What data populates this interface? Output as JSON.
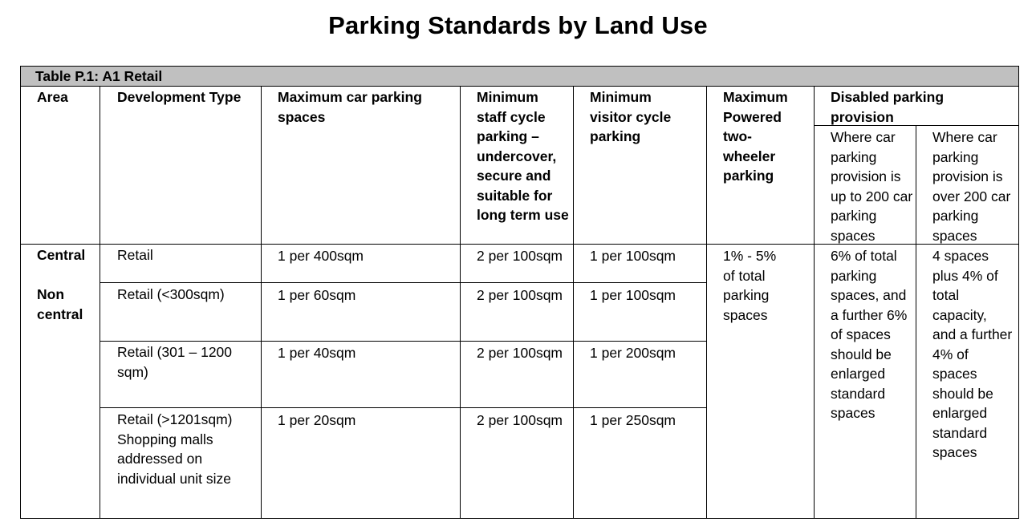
{
  "title": "Parking Standards by Land Use",
  "table_caption": "Table P.1: A1 Retail",
  "headers": {
    "area": "Area",
    "development_type": "Development Type",
    "max_car": "Maximum car parking spaces",
    "min_staff_cycle": "Minimum staff cycle parking – undercover, secure and suitable for long term use",
    "min_visitor_cycle": "Minimum visitor cycle parking",
    "max_powered": "Maximum Powered two-wheeler parking",
    "disabled": "Disabled parking provision",
    "disabled_sub1": "Where car parking provision is up to 200 car parking spaces",
    "disabled_sub2": "Where car parking provision is over 200 car parking spaces"
  },
  "rows": [
    {
      "area": "Central",
      "type": "Retail",
      "max_car": "1 per 400sqm",
      "staff_cycle": "2 per 100sqm",
      "visitor_cycle": "1 per 100sqm"
    },
    {
      "area": "Non central",
      "type": "Retail (<300sqm)",
      "max_car": "1 per 60sqm",
      "staff_cycle": "2 per 100sqm",
      "visitor_cycle": "1 per 100sqm"
    },
    {
      "area": "",
      "type": "Retail (301 – 1200 sqm)",
      "max_car": "1 per 40sqm",
      "staff_cycle": "2 per 100sqm",
      "visitor_cycle": "1 per 200sqm"
    },
    {
      "area": "",
      "type": "Retail (>1201sqm) Shopping malls addressed on individual unit size",
      "max_car": "1 per 20sqm",
      "staff_cycle": "2 per 100sqm",
      "visitor_cycle": "1 per 250sqm"
    }
  ],
  "merged": {
    "powered": "1% - 5% of total parking spaces",
    "disabled_up_to_200": "6% of total parking spaces, and a further 6% of spaces should be enlarged standard spaces",
    "disabled_over_200": "4 spaces plus 4% of total capacity, and a further 4% of spaces should be enlarged standard spaces"
  }
}
